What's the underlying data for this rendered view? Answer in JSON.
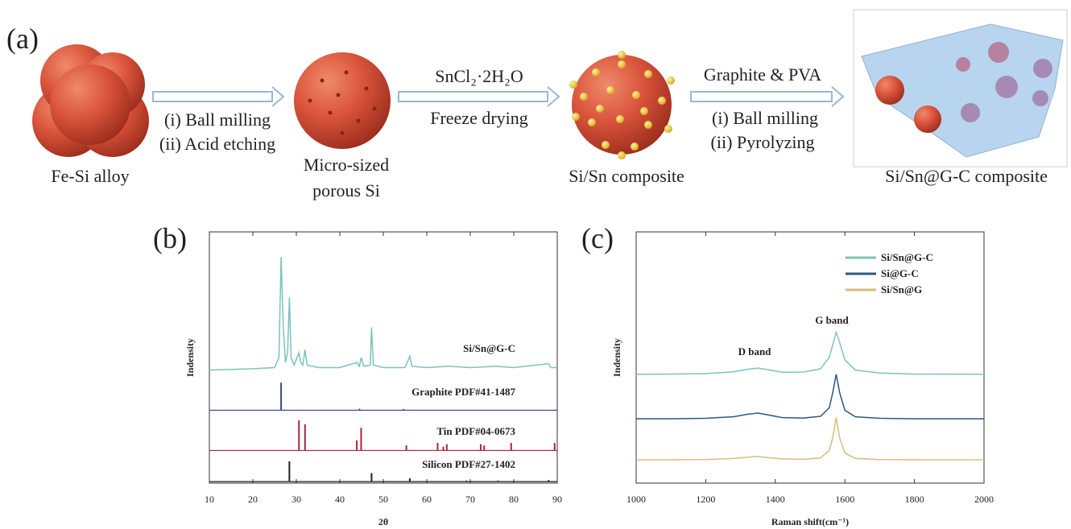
{
  "schematic": {
    "panel_label": "(a)",
    "step1": [
      "(i) Ball milling",
      "(ii) Acid etching"
    ],
    "step2": [
      "SnCl₂·2H₂O",
      "Freeze drying"
    ],
    "step3": [
      "Graphite & PVA",
      "(i) Ball milling",
      "(ii) Pyrolyzing"
    ],
    "materials": [
      "Fe-Si alloy",
      "Micro-sized",
      "porous Si",
      "Si/Sn composite",
      "Si/Sn@G-C composite"
    ]
  },
  "chart_data": [
    {
      "type": "xrd",
      "panel_label": "(b)",
      "xlabel": "2θ",
      "ylabel": "Indensity",
      "xlim": [
        10,
        90
      ],
      "xticks": [
        10,
        20,
        30,
        40,
        50,
        60,
        70,
        80,
        90
      ],
      "ylim": [
        0,
        100
      ],
      "series": [
        {
          "name": "Si/Sn@G-C",
          "kind": "line",
          "color": "#7cc3bb",
          "x": [
            10,
            20,
            25,
            26,
            26.5,
            27,
            27.5,
            28,
            28.4,
            28.8,
            29.5,
            30.6,
            31,
            31.5,
            32,
            32.5,
            35,
            40,
            43.9,
            44.5,
            44.9,
            45.5,
            47,
            47.3,
            47.7,
            50,
            55,
            56.1,
            56.6,
            60,
            65,
            70,
            76,
            80,
            88,
            88.5,
            90
          ],
          "values": [
            45,
            45.5,
            46,
            50,
            90,
            62,
            48,
            52,
            74,
            50,
            47,
            52,
            48,
            47,
            53,
            47,
            46,
            46,
            48,
            46.5,
            50,
            46.5,
            47,
            62,
            47,
            46,
            46,
            50.5,
            46.5,
            46,
            46.5,
            46,
            46.5,
            46,
            47.5,
            46,
            46
          ]
        },
        {
          "name": "Graphite PDF#41-1487",
          "kind": "stick",
          "color": "#3b4a86",
          "baseline": 29,
          "x": [
            26.5,
            44.5,
            54.6
          ],
          "values": [
            40,
            29.6,
            29.5
          ]
        },
        {
          "name": "Tin PDF#04-0673",
          "kind": "stick",
          "color": "#a8283a",
          "baseline": 13,
          "x": [
            30.6,
            32,
            43.9,
            44.9,
            55.3,
            62.5,
            63.8,
            64.6,
            72.4,
            73.2,
            79.4,
            89.4
          ],
          "values": [
            25,
            23.4,
            17,
            22,
            15,
            16,
            14.5,
            15.5,
            15.5,
            15,
            16,
            16
          ]
        },
        {
          "name": "Silicon PDF#27-1402",
          "kind": "stick",
          "color": "#222222",
          "baseline": 0.6,
          "x": [
            28.4,
            47.3,
            56.1,
            69.1,
            76.4,
            88
          ],
          "values": [
            8.7,
            4,
            1.9,
            1,
            1,
            1.2
          ]
        }
      ]
    },
    {
      "type": "raman",
      "panel_label": "(c)",
      "xlabel": "Raman shift(cm⁻¹)",
      "ylabel": "Indensity",
      "xlim": [
        1000,
        2000
      ],
      "xticks": [
        1000,
        1200,
        1400,
        1600,
        1800,
        2000
      ],
      "ylim": [
        0,
        100
      ],
      "annotations": [
        "D band",
        "G band"
      ],
      "series": [
        {
          "name": "Si/Sn@G-C",
          "color": "#7cc3bb",
          "x": [
            1000,
            1100,
            1200,
            1280,
            1320,
            1350,
            1380,
            1420,
            1480,
            1530,
            1555,
            1565,
            1575,
            1585,
            1600,
            1630,
            1700,
            1800,
            1900,
            2000
          ],
          "values": [
            43.3,
            43.4,
            43.6,
            44.3,
            45.3,
            45.8,
            45.1,
            44.1,
            44.2,
            45.5,
            50,
            55,
            60,
            56,
            49,
            45,
            43.8,
            43.4,
            43.4,
            43.3
          ]
        },
        {
          "name": "Si@G-C",
          "color": "#2f5782",
          "x": [
            1000,
            1100,
            1200,
            1280,
            1320,
            1350,
            1380,
            1420,
            1480,
            1530,
            1555,
            1565,
            1575,
            1585,
            1600,
            1630,
            1700,
            1800,
            1900,
            2000
          ],
          "values": [
            25.6,
            25.6,
            25.8,
            26.4,
            27.4,
            27.9,
            27.1,
            26.1,
            25.9,
            26.6,
            30,
            36,
            43.3,
            36,
            29,
            26.4,
            25.8,
            25.6,
            25.6,
            25.6
          ]
        },
        {
          "name": "Si/Sn@G",
          "color": "#d8be7c",
          "x": [
            1000,
            1100,
            1200,
            1280,
            1320,
            1350,
            1380,
            1420,
            1480,
            1530,
            1555,
            1565,
            1575,
            1585,
            1600,
            1630,
            1700,
            1800,
            1900,
            2000
          ],
          "values": [
            9.3,
            9.3,
            9.4,
            9.8,
            10.3,
            10.6,
            10.1,
            9.6,
            9.5,
            10,
            13,
            18,
            26,
            18,
            12,
            9.8,
            9.4,
            9.3,
            9.3,
            9.3
          ]
        }
      ]
    }
  ]
}
